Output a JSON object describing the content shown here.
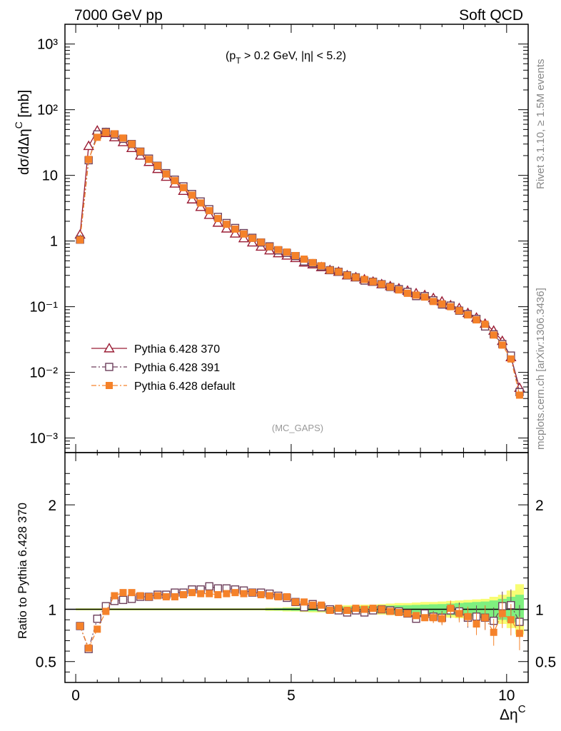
{
  "header": {
    "left": "7000 GeV pp",
    "right": "Soft QCD"
  },
  "side_labels": {
    "top": "Rivet 3.1.10, ≥ 1.5M events",
    "bottom": "mcplots.cern.ch [arXiv:1306.3436]"
  },
  "cut_label": {
    "pre": "(p",
    "sub": "T",
    "post": " > 0.2 GeV, |η| < 5.2)"
  },
  "analysis_label": "(MC_GAPS)",
  "colors": {
    "p370": "#9a1c34",
    "p391": "#6d3f5b",
    "pdef": "#f5822a",
    "band_yellow": "#f8fd74",
    "band_green": "#7ff07f"
  },
  "chart_data": [
    {
      "type": "line",
      "panel": "main",
      "ylabel": "dσ/dΔηC [mb]",
      "yscale": "log",
      "ylim": [
        0.0006,
        2000
      ],
      "xlim": [
        -0.25,
        10.5
      ],
      "ytick_labels": [
        "10⁻³",
        "10⁻²",
        "10⁻¹",
        "1",
        "10",
        "10²",
        "10³"
      ],
      "x": [
        0.1,
        0.3,
        0.5,
        0.7,
        0.9,
        1.1,
        1.3,
        1.5,
        1.7,
        1.9,
        2.1,
        2.3,
        2.5,
        2.7,
        2.9,
        3.1,
        3.3,
        3.5,
        3.7,
        3.9,
        4.1,
        4.3,
        4.5,
        4.7,
        4.9,
        5.1,
        5.3,
        5.5,
        5.7,
        5.9,
        6.1,
        6.3,
        6.5,
        6.7,
        6.9,
        7.1,
        7.3,
        7.5,
        7.7,
        7.9,
        8.1,
        8.3,
        8.5,
        8.7,
        8.9,
        9.1,
        9.3,
        9.5,
        9.7,
        9.9,
        10.1,
        10.3
      ],
      "series": [
        {
          "name": "Pythia 6.428 370",
          "marker": "open-triangle",
          "line": "solid",
          "values": [
            1.25,
            28,
            48,
            44,
            38,
            32,
            26,
            20,
            16,
            12.5,
            9.5,
            7.5,
            5.8,
            4.3,
            3.3,
            2.5,
            1.9,
            1.55,
            1.3,
            1.1,
            0.95,
            0.82,
            0.72,
            0.65,
            0.6,
            0.55,
            0.47,
            0.44,
            0.4,
            0.36,
            0.34,
            0.3,
            0.28,
            0.26,
            0.24,
            0.22,
            0.205,
            0.19,
            0.175,
            0.16,
            0.15,
            0.135,
            0.12,
            0.105,
            0.095,
            0.08,
            0.068,
            0.055,
            0.043,
            0.03,
            0.017,
            0.0058
          ]
        },
        {
          "name": "Pythia 6.428 391",
          "marker": "open-square",
          "line": "dashdot",
          "values": [
            1.05,
            17,
            42,
            46,
            42,
            36,
            30,
            23,
            18,
            14,
            10.8,
            8.6,
            6.8,
            5.2,
            4,
            3.05,
            2.33,
            1.88,
            1.58,
            1.32,
            1.12,
            0.95,
            0.83,
            0.72,
            0.66,
            0.59,
            0.49,
            0.46,
            0.41,
            0.36,
            0.34,
            0.3,
            0.28,
            0.25,
            0.24,
            0.22,
            0.2,
            0.185,
            0.168,
            0.145,
            0.145,
            0.125,
            0.108,
            0.104,
            0.087,
            0.077,
            0.065,
            0.05,
            0.038,
            0.027,
            0.018,
            0.005
          ]
        },
        {
          "name": "Pythia 6.428 default",
          "marker": "filled-square",
          "line": "dashdot",
          "values": [
            1.04,
            17.5,
            38,
            45,
            43,
            37,
            30,
            23,
            17.5,
            14,
            10.5,
            8.3,
            6.5,
            5,
            3.8,
            2.9,
            2.2,
            1.8,
            1.52,
            1.28,
            1.1,
            0.96,
            0.82,
            0.74,
            0.68,
            0.6,
            0.53,
            0.47,
            0.42,
            0.36,
            0.34,
            0.3,
            0.28,
            0.26,
            0.24,
            0.22,
            0.2,
            0.18,
            0.16,
            0.15,
            0.14,
            0.12,
            0.11,
            0.1,
            0.087,
            0.075,
            0.063,
            0.054,
            0.037,
            0.026,
            0.016,
            0.0045
          ]
        }
      ]
    },
    {
      "type": "line",
      "panel": "ratio",
      "ylabel": "Ratio to Pythia 6.428 370",
      "xlabel": "ΔηC",
      "ylim": [
        0.3,
        2.5
      ],
      "xlim": [
        -0.25,
        10.5
      ],
      "xtick_labels": [
        "0",
        "5",
        "10"
      ],
      "ytick_labels": [
        "0.5",
        "1",
        "2"
      ],
      "reference_line": 1,
      "x": [
        0.1,
        0.3,
        0.5,
        0.7,
        0.9,
        1.1,
        1.3,
        1.5,
        1.7,
        1.9,
        2.1,
        2.3,
        2.5,
        2.7,
        2.9,
        3.1,
        3.3,
        3.5,
        3.7,
        3.9,
        4.1,
        4.3,
        4.5,
        4.7,
        4.9,
        5.1,
        5.3,
        5.5,
        5.7,
        5.9,
        6.1,
        6.3,
        6.5,
        6.7,
        6.9,
        7.1,
        7.3,
        7.5,
        7.7,
        7.9,
        8.1,
        8.3,
        8.5,
        8.7,
        8.9,
        9.1,
        9.3,
        9.5,
        9.7,
        9.9,
        10.1,
        10.3
      ],
      "band_yellow_halfwidth": [
        0.01,
        0.01,
        0.01,
        0.01,
        0.01,
        0.01,
        0.01,
        0.01,
        0.01,
        0.01,
        0.01,
        0.01,
        0.01,
        0.01,
        0.01,
        0.01,
        0.01,
        0.01,
        0.01,
        0.01,
        0.01,
        0.01,
        0.015,
        0.015,
        0.02,
        0.02,
        0.025,
        0.03,
        0.03,
        0.035,
        0.035,
        0.04,
        0.04,
        0.045,
        0.045,
        0.05,
        0.055,
        0.06,
        0.06,
        0.065,
        0.07,
        0.07,
        0.075,
        0.08,
        0.085,
        0.09,
        0.095,
        0.1,
        0.12,
        0.14,
        0.18,
        0.24
      ],
      "band_green_halfwidth": [
        0.005,
        0.005,
        0.005,
        0.005,
        0.005,
        0.005,
        0.005,
        0.005,
        0.005,
        0.005,
        0.005,
        0.005,
        0.005,
        0.005,
        0.005,
        0.005,
        0.005,
        0.005,
        0.005,
        0.005,
        0.005,
        0.005,
        0.008,
        0.01,
        0.012,
        0.014,
        0.016,
        0.018,
        0.02,
        0.022,
        0.024,
        0.026,
        0.028,
        0.03,
        0.032,
        0.034,
        0.036,
        0.038,
        0.04,
        0.042,
        0.045,
        0.048,
        0.05,
        0.055,
        0.06,
        0.065,
        0.07,
        0.075,
        0.085,
        0.1,
        0.12,
        0.14
      ],
      "series": [
        {
          "name": "Pythia 6.428 391",
          "values": [
            0.84,
            0.62,
            0.91,
            1.03,
            1.08,
            1.09,
            1.1,
            1.12,
            1.12,
            1.14,
            1.14,
            1.16,
            1.16,
            1.19,
            1.19,
            1.22,
            1.2,
            1.2,
            1.19,
            1.18,
            1.16,
            1.16,
            1.15,
            1.13,
            1.11,
            1.07,
            1.02,
            1.05,
            1.02,
            1.0,
            0.99,
            0.97,
            0.99,
            0.97,
            0.99,
            1.0,
            0.99,
            0.98,
            0.96,
            0.91,
            0.96,
            0.93,
            0.92,
            0.99,
            0.98,
            0.92,
            0.93,
            0.92,
            0.89,
            1.03,
            1.04,
            0.88
          ]
        },
        {
          "name": "Pythia 6.428 default",
          "values": [
            0.84,
            0.63,
            0.81,
            0.98,
            1.13,
            1.16,
            1.16,
            1.13,
            1.12,
            1.13,
            1.12,
            1.12,
            1.14,
            1.16,
            1.15,
            1.15,
            1.14,
            1.15,
            1.16,
            1.15,
            1.16,
            1.14,
            1.13,
            1.12,
            1.12,
            1.07,
            1.07,
            1.04,
            1.04,
            0.99,
            1.01,
            0.99,
            1.01,
            1.0,
            1.01,
            1.0,
            0.98,
            0.97,
            0.96,
            0.94,
            0.92,
            0.92,
            0.91,
            1.01,
            0.96,
            0.93,
            0.86,
            0.92,
            0.78,
            0.96,
            0.9,
            0.77
          ]
        }
      ]
    }
  ]
}
